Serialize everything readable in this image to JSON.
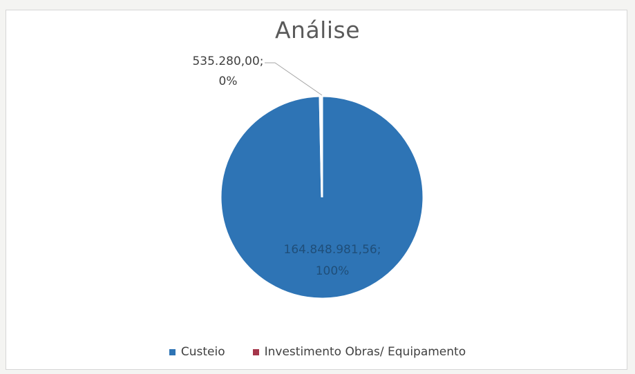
{
  "chart_data": {
    "type": "pie",
    "title": "Análise",
    "slices": [
      {
        "label": "Custeio",
        "value": 164848981.56,
        "data_label_value": "164.848.981,56;",
        "data_label_pct": "100%",
        "color": "#2e74b5"
      },
      {
        "label": "Investimento Obras/ Equipamento",
        "value": 535280.0,
        "data_label_value": "535.280,00;",
        "data_label_pct": "0%",
        "color": "#a5364a"
      }
    ],
    "legend_position": "bottom"
  }
}
